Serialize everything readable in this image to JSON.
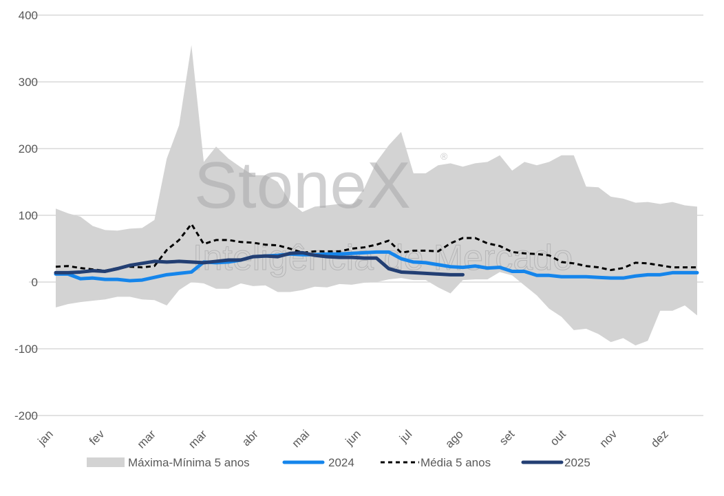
{
  "chart_data": {
    "type": "area",
    "title": "",
    "xlabel": "",
    "ylabel": "",
    "ylim": [
      -200,
      400
    ],
    "yticks": [
      400,
      300,
      200,
      100,
      0,
      -100,
      -200
    ],
    "ytick_labels": [
      "400",
      "300",
      "200",
      "100",
      "0",
      "-100",
      "-200"
    ],
    "xtick_labels": [
      "jan",
      "fev",
      "mar",
      "mar",
      "abr",
      "mai",
      "jun",
      "jul",
      "ago",
      "set",
      "out",
      "nov",
      "dez"
    ],
    "grid": true,
    "legend_position": "bottom",
    "watermark": {
      "brand": "StoneX",
      "sub": "Inteligência de Mercado"
    },
    "colors": {
      "band": "#d3d3d3",
      "s2024": "#1585eb",
      "media": "#000000",
      "s2025": "#233f73",
      "grid": "#d9d9d9"
    },
    "series": [
      {
        "name": "Máxima-Mínima 5 anos",
        "kind": "band",
        "max": [
          110,
          103,
          98,
          84,
          78,
          77,
          80,
          81,
          93,
          185,
          235,
          355,
          180,
          203,
          185,
          172,
          160,
          160,
          150,
          120,
          105,
          113,
          115,
          117,
          115,
          140,
          180,
          205,
          225,
          163,
          163,
          175,
          178,
          173,
          178,
          180,
          190,
          167,
          180,
          175,
          180,
          190,
          190,
          143,
          142,
          128,
          125,
          119,
          120,
          117,
          120,
          115,
          113
        ],
        "min": [
          -38,
          -33,
          -30,
          -28,
          -26,
          -22,
          -22,
          -26,
          -27,
          -35,
          -12,
          0,
          -2,
          -10,
          -10,
          -2,
          -6,
          -5,
          -15,
          -15,
          -12,
          -7,
          -8,
          -3,
          -4,
          -1,
          0,
          4,
          6,
          3,
          3,
          -8,
          -17,
          3,
          4,
          4,
          15,
          10,
          -5,
          -20,
          -40,
          -52,
          -72,
          -70,
          -78,
          -90,
          -84,
          -95,
          -88,
          -43,
          -43,
          -35,
          -50
        ]
      },
      {
        "name": "2024",
        "kind": "line",
        "values": [
          12,
          12,
          5,
          6,
          4,
          4,
          2,
          3,
          7,
          11,
          13,
          15,
          30,
          29,
          30,
          33,
          38,
          39,
          40,
          42,
          41,
          41,
          42,
          42,
          43,
          44,
          45,
          45,
          35,
          30,
          29,
          26,
          23,
          22,
          24,
          21,
          22,
          16,
          16,
          10,
          10,
          8,
          8,
          8,
          7,
          6,
          6,
          9,
          11,
          11,
          14,
          14,
          14
        ]
      },
      {
        "name": "Média 5 anos",
        "kind": "dashed",
        "values": [
          23,
          24,
          21,
          19,
          17,
          21,
          23,
          22,
          24,
          48,
          63,
          87,
          57,
          63,
          63,
          60,
          59,
          56,
          55,
          50,
          44,
          46,
          46,
          46,
          50,
          52,
          56,
          62,
          44,
          47,
          47,
          46,
          58,
          66,
          66,
          58,
          54,
          45,
          43,
          42,
          40,
          30,
          28,
          24,
          22,
          18,
          21,
          29,
          28,
          25,
          22,
          22,
          22
        ]
      },
      {
        "name": "2025",
        "kind": "line",
        "values": [
          14,
          14,
          15,
          17,
          16,
          20,
          25,
          28,
          31,
          30,
          31,
          30,
          29,
          31,
          33,
          33,
          38,
          39,
          38,
          43,
          44,
          40,
          38,
          37,
          37,
          36,
          36,
          20,
          15,
          14,
          13,
          12,
          11,
          11
        ]
      }
    ]
  }
}
